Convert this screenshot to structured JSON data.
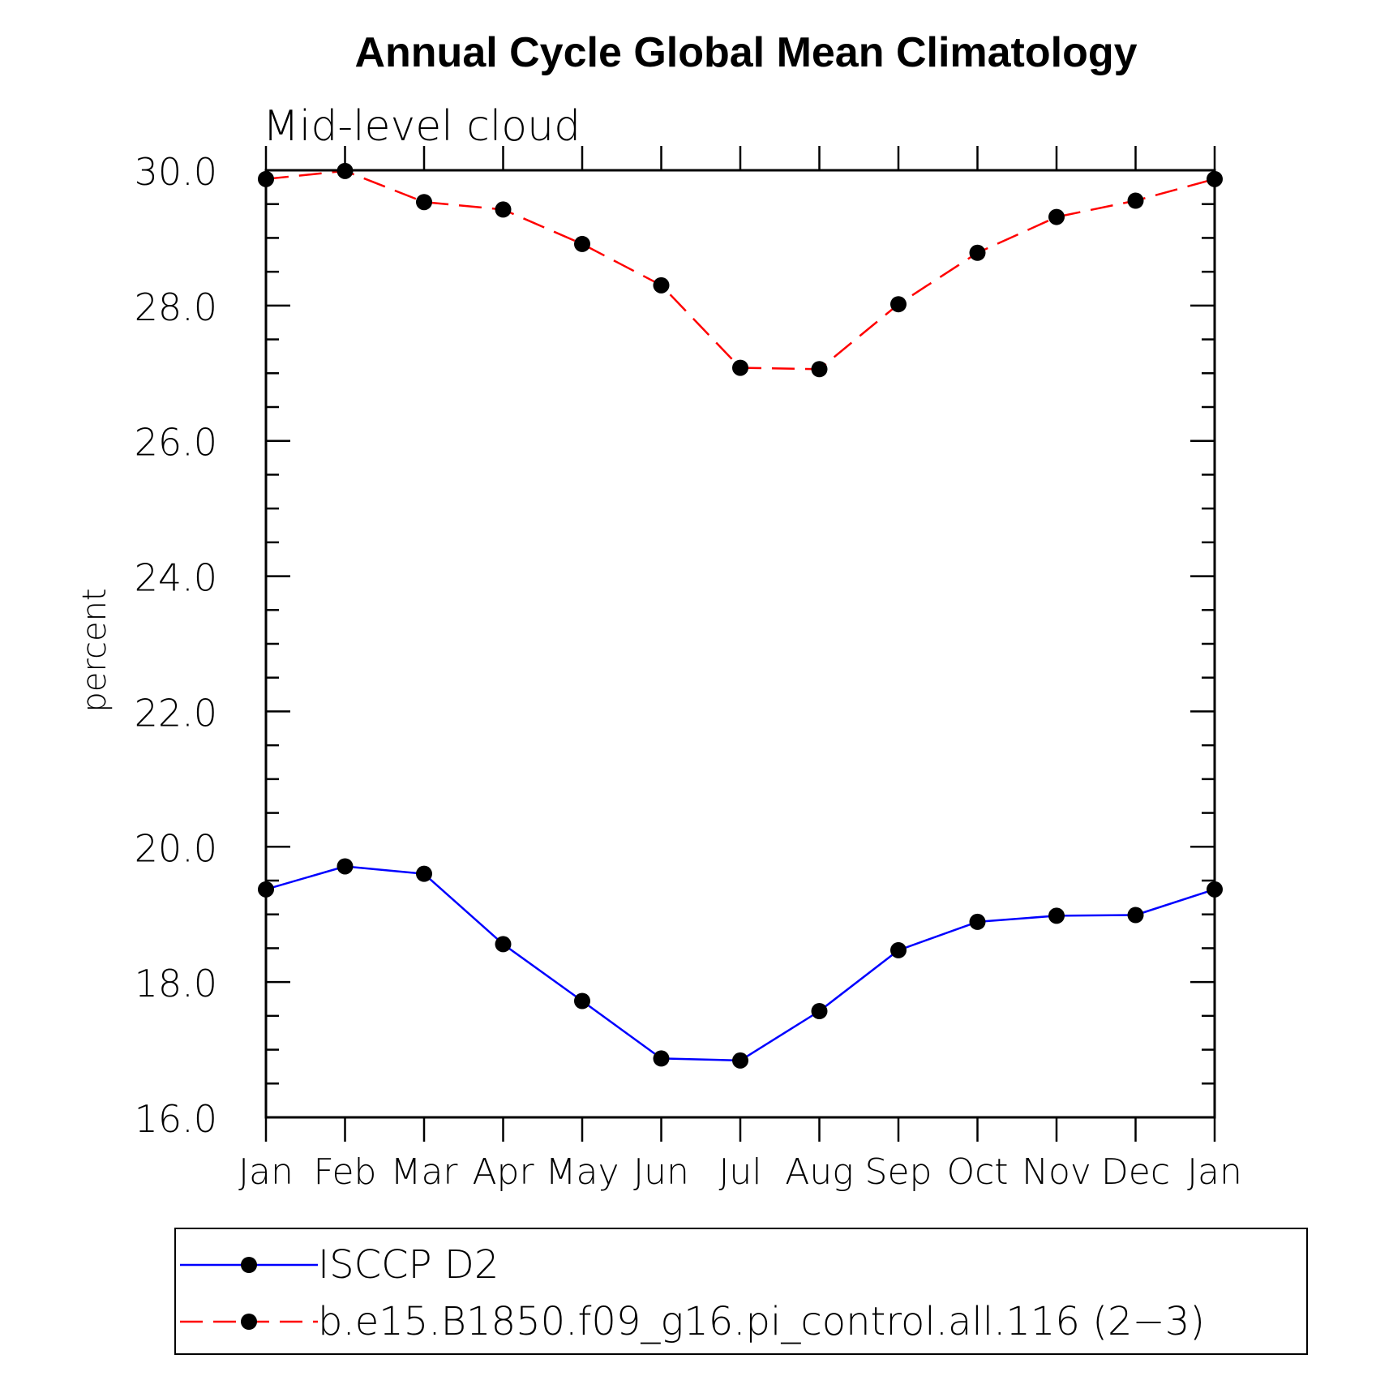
{
  "chart_data": {
    "type": "line",
    "title": "Annual Cycle Global Mean Climatology",
    "subtitle": "Mid-level cloud",
    "ylabel": "percent",
    "xlabel": "",
    "ylim": [
      16.0,
      30.0
    ],
    "y_major_ticks": [
      "16.0",
      "18.0",
      "20.0",
      "22.0",
      "24.0",
      "26.0",
      "28.0",
      "30.0"
    ],
    "y_minor_step": 0.5,
    "categories": [
      "Jan",
      "Feb",
      "Mar",
      "Apr",
      "May",
      "Jun",
      "Jul",
      "Aug",
      "Sep",
      "Oct",
      "Nov",
      "Dec",
      "Jan"
    ],
    "grid": false,
    "legend_position": "bottom",
    "series": [
      {
        "name": "ISCCP D2",
        "color": "#0000ff",
        "dash": "solid",
        "values": [
          19.37,
          19.71,
          19.6,
          18.56,
          17.72,
          16.87,
          16.84,
          17.57,
          18.47,
          18.89,
          18.98,
          18.99,
          19.37
        ]
      },
      {
        "name": "b.e15.B1850.f09_g16.pi_control.all.116 (2−3)",
        "color": "#ff0000",
        "dash": "dashed",
        "values": [
          29.87,
          29.99,
          29.53,
          29.42,
          28.91,
          28.3,
          27.08,
          27.06,
          28.02,
          28.78,
          29.31,
          29.55,
          29.87
        ]
      }
    ]
  }
}
